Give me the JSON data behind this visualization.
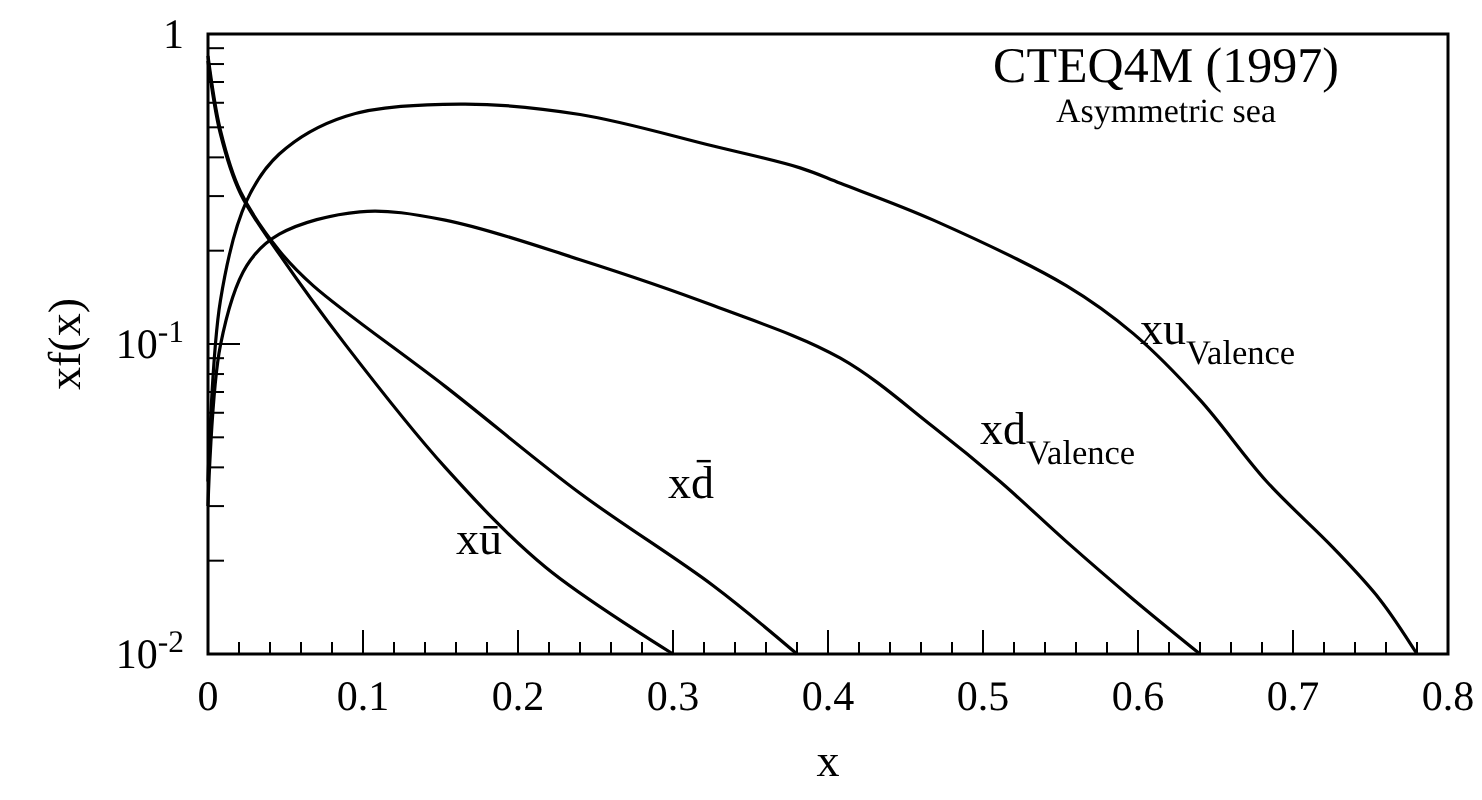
{
  "chart_data": {
    "type": "line",
    "title": "CTEQ4M (1997)",
    "subtitle": "Asymmetric sea",
    "xlabel": "x",
    "ylabel": "xf(x)",
    "log": "y",
    "grid": false,
    "marker": "none",
    "line_style": "solid",
    "xlim": [
      0,
      0.8
    ],
    "ylim": [
      0.01,
      1
    ],
    "xticks": [
      0,
      {
        "value": 0.02,
        "label": null
      },
      {
        "value": 0.04,
        "label": null
      },
      {
        "value": 0.06,
        "label": null
      },
      {
        "value": 0.08,
        "label": null
      },
      0.1,
      {
        "value": 0.12,
        "label": null
      },
      {
        "value": 0.14,
        "label": null
      },
      {
        "value": 0.16,
        "label": null
      },
      {
        "value": 0.18,
        "label": null
      },
      0.2,
      {
        "value": 0.22,
        "label": null
      },
      {
        "value": 0.24,
        "label": null
      },
      {
        "value": 0.26,
        "label": null
      },
      {
        "value": 0.28,
        "label": null
      },
      0.3,
      {
        "value": 0.32,
        "label": null
      },
      {
        "value": 0.34,
        "label": null
      },
      {
        "value": 0.36,
        "label": null
      },
      {
        "value": 0.38,
        "label": null
      },
      0.4,
      {
        "value": 0.42,
        "label": null
      },
      {
        "value": 0.44,
        "label": null
      },
      {
        "value": 0.46,
        "label": null
      },
      {
        "value": 0.48,
        "label": null
      },
      0.5,
      {
        "value": 0.52,
        "label": null
      },
      {
        "value": 0.54,
        "label": null
      },
      {
        "value": 0.56,
        "label": null
      },
      {
        "value": 0.58,
        "label": null
      },
      0.6,
      {
        "value": 0.62,
        "label": null
      },
      {
        "value": 0.64,
        "label": null
      },
      {
        "value": 0.66,
        "label": null
      },
      {
        "value": 0.68,
        "label": null
      },
      0.7,
      {
        "value": 0.72,
        "label": null
      },
      {
        "value": 0.74,
        "label": null
      },
      {
        "value": 0.76,
        "label": null
      },
      {
        "value": 0.78,
        "label": null
      },
      0.8
    ],
    "yticks": [
      {
        "value": 0.01,
        "label": "10$^{-2}$"
      },
      {
        "value": 0.02,
        "label": null
      },
      {
        "value": 0.03,
        "label": null
      },
      {
        "value": 0.04,
        "label": null
      },
      {
        "value": 0.05,
        "label": null
      },
      {
        "value": 0.06,
        "label": null
      },
      {
        "value": 0.07,
        "label": null
      },
      {
        "value": 0.08,
        "label": null
      },
      {
        "value": 0.09,
        "label": null
      },
      {
        "value": 0.1,
        "label": "10$^{-1}$"
      },
      {
        "value": 0.2,
        "label": null
      },
      {
        "value": 0.3,
        "label": null
      },
      {
        "value": 0.4,
        "label": null
      },
      {
        "value": 0.5,
        "label": null
      },
      {
        "value": 0.6,
        "label": null
      },
      {
        "value": 0.7,
        "label": null
      },
      {
        "value": 0.8,
        "label": null
      },
      {
        "value": 0.9,
        "label": null
      },
      1
    ],
    "series": [
      {
        "name": "xu$_{Valence}$",
        "color": "#000000",
        "x": [
          0,
          0.008,
          0.025,
          0.046,
          0.089,
          0.163,
          0.24,
          0.326,
          0.382,
          0.408,
          0.468,
          0.554,
          0.597,
          0.64,
          0.683,
          0.726,
          0.756,
          0.78
        ],
        "values": [
          0.036,
          0.138,
          0.29,
          0.41,
          0.543,
          0.594,
          0.55,
          0.435,
          0.37,
          0.33,
          0.251,
          0.154,
          0.108,
          0.066,
          0.036,
          0.022,
          0.015,
          0.01
        ]
      },
      {
        "name": "xd$_{Valence}$",
        "color": "#000000",
        "x": [
          0,
          0.008,
          0.025,
          0.046,
          0.098,
          0.153,
          0.24,
          0.326,
          0.408,
          0.468,
          0.511,
          0.554,
          0.597,
          0.64
        ],
        "values": [
          0.03,
          0.099,
          0.179,
          0.226,
          0.267,
          0.251,
          0.187,
          0.133,
          0.09,
          0.054,
          0.036,
          0.023,
          0.015,
          0.01
        ]
      },
      {
        "name": "xū",
        "color": "#000000",
        "x": [
          0,
          0.008,
          0.021,
          0.046,
          0.089,
          0.153,
          0.218,
          0.3
        ],
        "values": [
          0.82,
          0.476,
          0.305,
          0.195,
          0.099,
          0.04,
          0.019,
          0.01
        ]
      },
      {
        "name": "xd̄",
        "color": "#000000",
        "x": [
          0,
          0.008,
          0.021,
          0.046,
          0.068,
          0.153,
          0.24,
          0.326,
          0.38
        ],
        "values": [
          0.85,
          0.49,
          0.31,
          0.2,
          0.154,
          0.073,
          0.033,
          0.0166,
          0.01
        ]
      }
    ]
  }
}
